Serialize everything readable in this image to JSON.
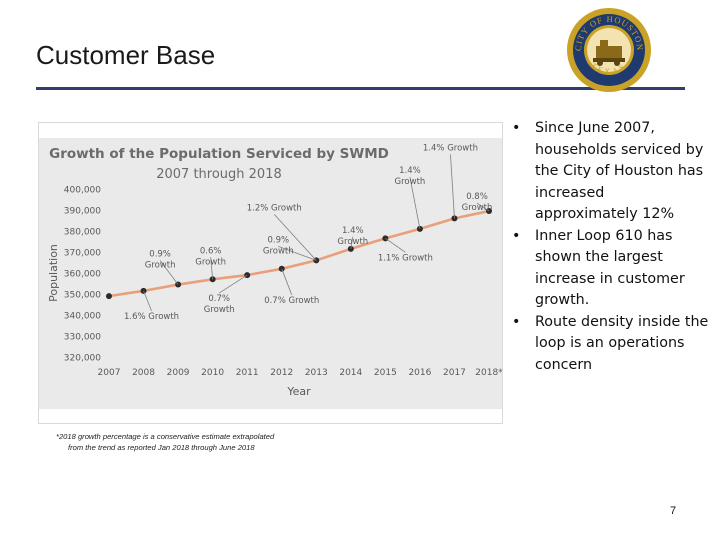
{
  "slide": {
    "title": "Customer Base",
    "page_number": "7"
  },
  "bullets": [
    "Since June 2007, households serviced by the City of Houston has increased approximately 12%",
    "Inner Loop 610 has shown the largest increase in customer growth.",
    "Route density inside the loop is an operations concern"
  ],
  "footnote": {
    "line1": "*2018 growth percentage is a conservative estimate extrapolated",
    "line2": "from the trend as reported Jan 2018 through June 2018"
  },
  "seal": {
    "top_text": "CITY OF HOUSTON",
    "bottom_text": "TEXAS"
  },
  "colors": {
    "line": "#e8a07a",
    "marker": "#2b2b2b",
    "chart_bg": "#eaeaea",
    "title_rule": "#2e3f6e",
    "seal_gold": "#c9a227",
    "seal_navy": "#1f3a6e"
  },
  "chart_data": {
    "type": "line",
    "title": "Growth of the Population Serviced by SWMD",
    "subtitle": "2007 through 2018",
    "xlabel": "Year",
    "ylabel": "Population",
    "categories": [
      "2007",
      "2008",
      "2009",
      "2010",
      "2011",
      "2012",
      "2013",
      "2014",
      "2015",
      "2016",
      "2017",
      "2018*"
    ],
    "values": [
      349000,
      351500,
      354500,
      357000,
      359000,
      362000,
      366000,
      371500,
      376500,
      381000,
      386000,
      389500
    ],
    "ylim": [
      320000,
      400000
    ],
    "yticks": [
      "320,000",
      "330,000",
      "340,000",
      "350,000",
      "360,000",
      "370,000",
      "380,000",
      "390,000",
      "400,000"
    ],
    "grid": false,
    "annotations": [
      {
        "text": "1.6% Growth",
        "year": "2008"
      },
      {
        "text": "0.9% Growth",
        "year": "2009"
      },
      {
        "text": "0.6% Growth",
        "year": "2010"
      },
      {
        "text": "0.7% Growth",
        "year": "2011"
      },
      {
        "text": "0.7% Growth",
        "year": "2012"
      },
      {
        "text": "1.2% Growth",
        "year": "2013"
      },
      {
        "text": "0.9% Growth",
        "year": "2013"
      },
      {
        "text": "1.4% Growth",
        "year": "2014"
      },
      {
        "text": "1.1% Growth",
        "year": "2015"
      },
      {
        "text": "1.4% Growth",
        "year": "2016"
      },
      {
        "text": "1.4% Growth",
        "year": "2017"
      },
      {
        "text": "0.8% Growth",
        "year": "2018*"
      }
    ]
  }
}
